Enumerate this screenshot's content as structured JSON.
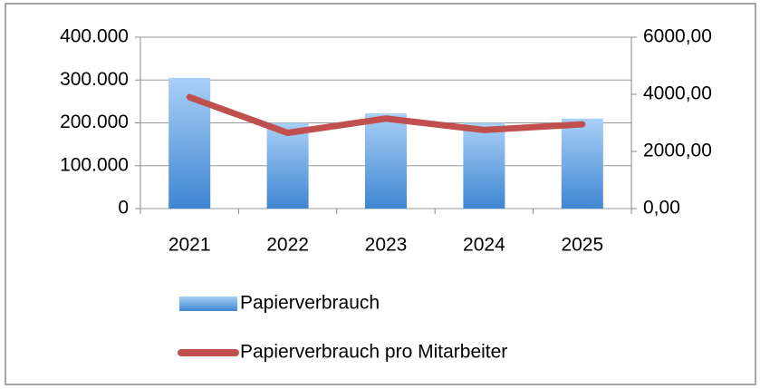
{
  "chart_data": {
    "type": "bar-line",
    "categories": [
      "2021",
      "2022",
      "2023",
      "2024",
      "2025"
    ],
    "series": [
      {
        "name": "Papierverbrauch",
        "type": "bar",
        "color": "#5b9bd5",
        "values": [
          305000,
          200000,
          222000,
          200000,
          210000
        ]
      },
      {
        "name": "Papierverbrauch pro Mitarbeiter",
        "type": "line",
        "axis": "y2",
        "color": "#c0504d",
        "values": [
          3900,
          2650,
          3150,
          2750,
          2950
        ]
      }
    ],
    "ylim": [
      0,
      400000
    ],
    "yticks": [
      0,
      {
        "value": 100000,
        "label": "100.000"
      },
      {
        "value": 200000,
        "label": "200.000"
      },
      {
        "value": 300000,
        "label": "300.000"
      },
      {
        "value": 400000,
        "label": "400.000"
      }
    ],
    "y2lim": [
      0,
      6000
    ],
    "y2ticks": [
      {
        "value": 0,
        "label": "0,00"
      },
      {
        "value": 2000,
        "label": "2000,00"
      },
      {
        "value": 4000,
        "label": "4000,00"
      },
      {
        "value": 6000,
        "label": "6000,00"
      }
    ],
    "grid": true,
    "legend": "bottom"
  }
}
